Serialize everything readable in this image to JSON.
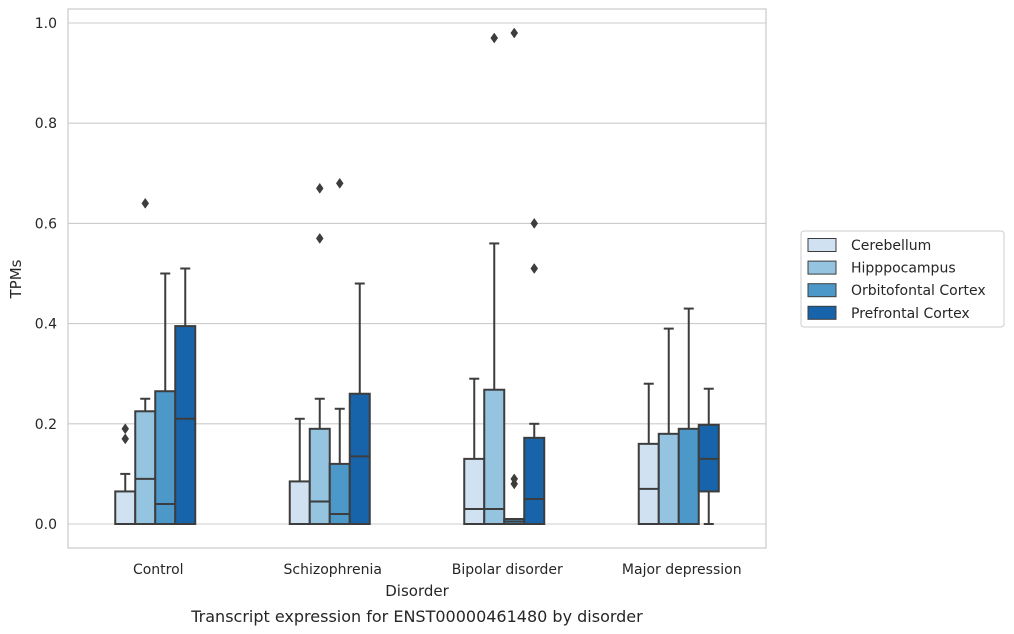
{
  "chart_data": {
    "type": "box",
    "title": "",
    "xlabel": "Disorder",
    "ylabel": "TPMs",
    "caption": "Transcript expression for ENST00000461480 by disorder",
    "ylim": [
      -0.045,
      1.03
    ],
    "yticks": [
      "0.0",
      "0.2",
      "0.4",
      "0.6",
      "0.8",
      "1.0"
    ],
    "ytick_values": [
      0.0,
      0.2,
      0.4,
      0.6,
      0.8,
      1.0
    ],
    "grid": true,
    "legend_position": "right",
    "categories": [
      "Control",
      "Schizophrenia",
      "Bipolar disorder",
      "Major depression"
    ],
    "series": [
      {
        "name": "Cerebellum",
        "color": "#d0e1f2",
        "boxes": [
          {
            "whislo": 0.0,
            "q1": 0.0,
            "med": 0.0,
            "q3": 0.065,
            "whishi": 0.1,
            "fliers": [
              0.17,
              0.19
            ]
          },
          {
            "whislo": 0.0,
            "q1": 0.0,
            "med": 0.0,
            "q3": 0.085,
            "whishi": 0.21,
            "fliers": []
          },
          {
            "whislo": 0.0,
            "q1": 0.0,
            "med": 0.03,
            "q3": 0.13,
            "whishi": 0.29,
            "fliers": []
          },
          {
            "whislo": 0.0,
            "q1": 0.0,
            "med": 0.07,
            "q3": 0.16,
            "whishi": 0.28,
            "fliers": []
          }
        ]
      },
      {
        "name": "Hipppocampus",
        "color": "#94c4df",
        "boxes": [
          {
            "whislo": 0.0,
            "q1": 0.0,
            "med": 0.09,
            "q3": 0.225,
            "whishi": 0.25,
            "fliers": [
              0.64
            ]
          },
          {
            "whislo": 0.0,
            "q1": 0.0,
            "med": 0.045,
            "q3": 0.19,
            "whishi": 0.25,
            "fliers": [
              0.57,
              0.67
            ]
          },
          {
            "whislo": 0.0,
            "q1": 0.0,
            "med": 0.03,
            "q3": 0.268,
            "whishi": 0.56,
            "fliers": [
              0.97
            ]
          },
          {
            "whislo": 0.0,
            "q1": 0.0,
            "med": 0.0,
            "q3": 0.18,
            "whishi": 0.39,
            "fliers": []
          }
        ]
      },
      {
        "name": "Orbitofontal Cortex",
        "color": "#4b98c9",
        "boxes": [
          {
            "whislo": 0.0,
            "q1": 0.0,
            "med": 0.04,
            "q3": 0.265,
            "whishi": 0.5,
            "fliers": []
          },
          {
            "whislo": 0.0,
            "q1": 0.0,
            "med": 0.02,
            "q3": 0.12,
            "whishi": 0.23,
            "fliers": [
              0.68
            ]
          },
          {
            "whislo": 0.0,
            "q1": 0.0,
            "med": 0.005,
            "q3": 0.01,
            "whishi": 0.01,
            "fliers": [
              0.08,
              0.09,
              0.98
            ]
          },
          {
            "whislo": 0.0,
            "q1": 0.0,
            "med": 0.0,
            "q3": 0.19,
            "whishi": 0.43,
            "fliers": []
          }
        ]
      },
      {
        "name": "Prefrontal Cortex",
        "color": "#1764ab",
        "boxes": [
          {
            "whislo": 0.0,
            "q1": 0.0,
            "med": 0.21,
            "q3": 0.395,
            "whishi": 0.51,
            "fliers": []
          },
          {
            "whislo": 0.0,
            "q1": 0.0,
            "med": 0.135,
            "q3": 0.26,
            "whishi": 0.48,
            "fliers": []
          },
          {
            "whislo": 0.0,
            "q1": 0.0,
            "med": 0.05,
            "q3": 0.172,
            "whishi": 0.2,
            "fliers": [
              0.51,
              0.6
            ]
          },
          {
            "whislo": 0.0,
            "q1": 0.065,
            "med": 0.13,
            "q3": 0.198,
            "whishi": 0.27,
            "fliers": []
          }
        ]
      }
    ]
  }
}
